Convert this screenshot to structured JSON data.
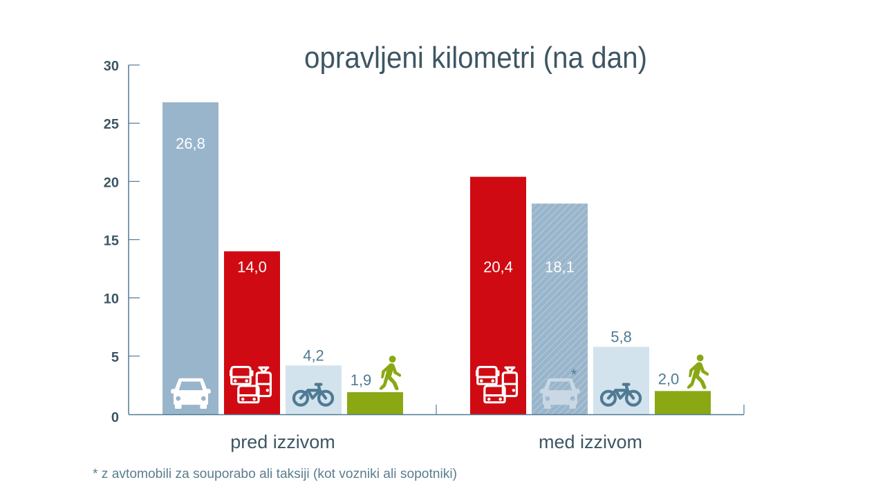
{
  "chart_data": {
    "type": "bar",
    "title": "opravljeni kilometri (na dan)",
    "xlabel": "",
    "ylabel": "",
    "ylim": [
      0,
      30
    ],
    "yticks": [
      0,
      5,
      10,
      15,
      20,
      25,
      30
    ],
    "grid": false,
    "categories": [
      "pred izzivom",
      "med izzivom"
    ],
    "groups": [
      {
        "label": "pred izzivom",
        "bars": [
          {
            "mode": "car",
            "value": 26.8,
            "label": "26,8",
            "color": "#99b5cb",
            "icon": "car-icon",
            "hatched": false,
            "label_inside": true,
            "label_color": "#ffffff"
          },
          {
            "mode": "public-transport",
            "value": 14.0,
            "label": "14,0",
            "color": "#d00a12",
            "icon": "public-transport-icon",
            "hatched": false,
            "label_inside": true,
            "label_color": "#ffffff"
          },
          {
            "mode": "bicycle",
            "value": 4.2,
            "label": "4,2",
            "color": "#d3e3ee",
            "icon": "bicycle-icon",
            "hatched": false,
            "label_inside": false,
            "label_color": "#4f7a93"
          },
          {
            "mode": "walking",
            "value": 1.9,
            "label": "1,9",
            "color": "#8aa814",
            "icon": "walking-icon",
            "hatched": false,
            "label_inside": false,
            "label_color": "#4f7a93"
          }
        ]
      },
      {
        "label": "med izzivom",
        "bars": [
          {
            "mode": "public-transport",
            "value": 20.4,
            "label": "20,4",
            "color": "#d00a12",
            "icon": "public-transport-icon",
            "hatched": false,
            "label_inside": true,
            "label_color": "#ffffff"
          },
          {
            "mode": "car-sharing-taxi",
            "value": 18.1,
            "label": "18,1",
            "color": "#99b5cb",
            "icon": "car-icon",
            "hatched": true,
            "asterisk": "*",
            "label_inside": true,
            "label_color": "#ffffff"
          },
          {
            "mode": "bicycle",
            "value": 5.8,
            "label": "5,8",
            "color": "#d3e3ee",
            "icon": "bicycle-icon",
            "hatched": false,
            "label_inside": false,
            "label_color": "#4f7a93"
          },
          {
            "mode": "walking",
            "value": 2.0,
            "label": "2,0",
            "color": "#8aa814",
            "icon": "walking-icon",
            "hatched": false,
            "label_inside": false,
            "label_color": "#4f7a93"
          }
        ]
      }
    ],
    "footnote": "* z avtomobili za souporabo ali taksiji (kot vozniki ali sopotniki)",
    "axis_color": "#4f7a93",
    "text_color": "#3d5663"
  }
}
